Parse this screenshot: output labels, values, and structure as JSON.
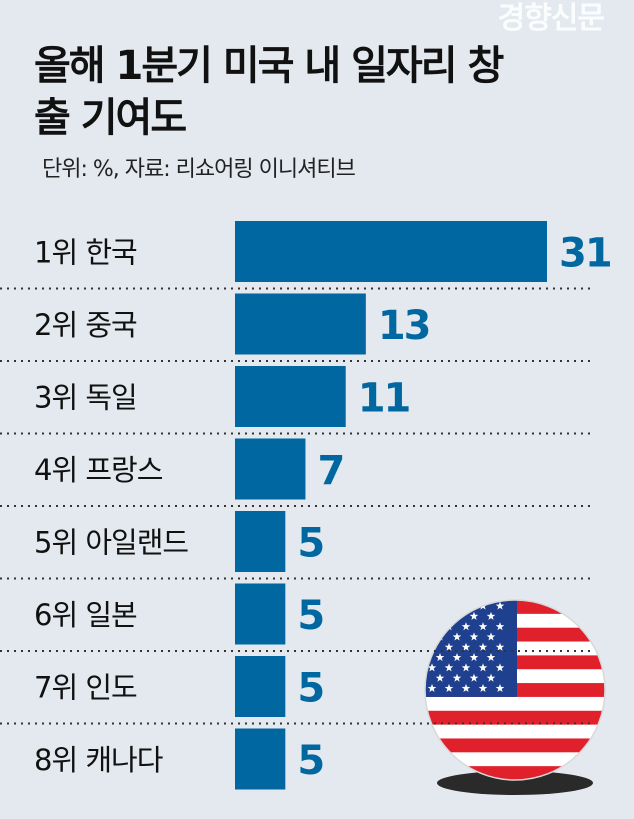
{
  "chart_data": {
    "type": "bar",
    "orientation": "horizontal",
    "title": "올해 1분기 미국 내 일자리 창출 기여도",
    "subtitle": "단위: %, 자료: 리쇼어링 이니셔티브",
    "categories": [
      "1위 한국",
      "2위 중국",
      "3위 독일",
      "4위 프랑스",
      "5위 아일랜드",
      "6위 일본",
      "7위 인도",
      "8위 캐나다"
    ],
    "values": [
      31,
      13,
      11,
      7,
      5,
      5,
      5,
      5
    ],
    "xlim": [
      0,
      31
    ],
    "grid": false,
    "bar_color": "#0067a0",
    "label_color": "#0067a0",
    "decoration": "us-flag-icon"
  },
  "watermark": "경향신문"
}
